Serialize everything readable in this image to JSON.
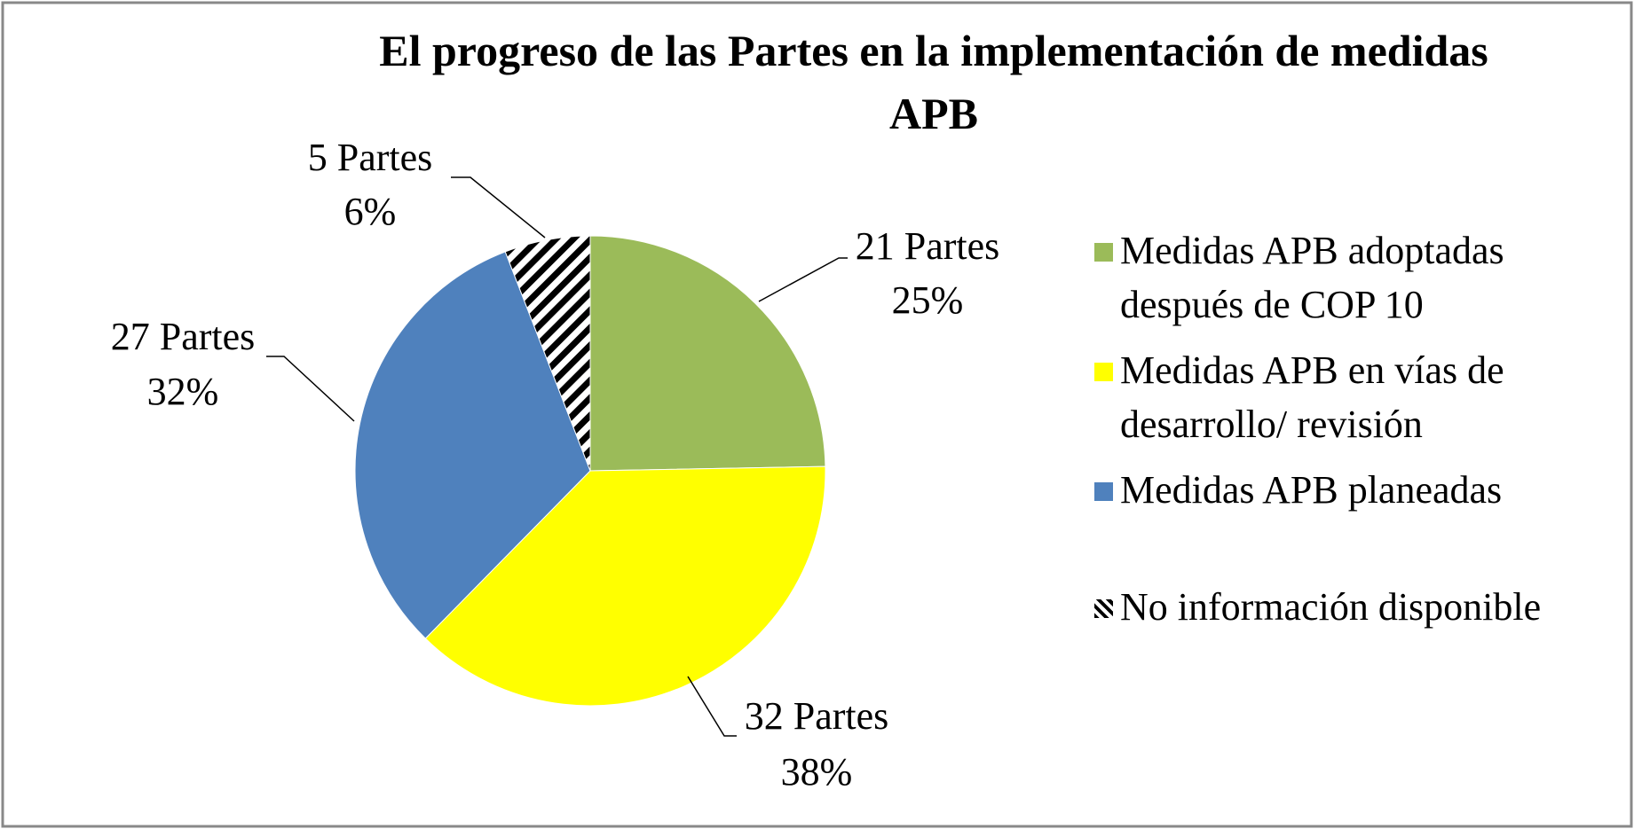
{
  "chart_data": {
    "type": "pie",
    "title": "El progreso de las Partes en la implementación de medidas APB",
    "categories": [
      "Medidas APB adoptadas después de COP 10",
      "Medidas APB en vías de desarrollo/ revisión",
      "Medidas APB planeadas",
      "No información disponible"
    ],
    "values": [
      21,
      32,
      27,
      5
    ],
    "value_labels": [
      "21 Partes",
      "32 Partes",
      "27 Partes",
      "5 Partes"
    ],
    "percent_labels": [
      "25%",
      "38%",
      "32%",
      "6%"
    ],
    "colors": [
      "#9bbb59",
      "#ffff00",
      "#4f81bd",
      "hatch"
    ],
    "legend": "right"
  }
}
